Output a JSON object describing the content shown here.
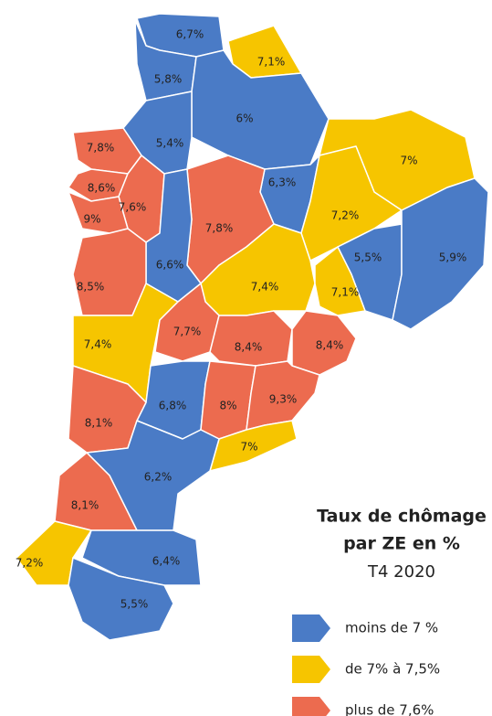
{
  "legend": {
    "title": [
      "Taux de chômage",
      "par ZE en %"
    ],
    "subtitle": "T4 2020",
    "items": [
      {
        "label": "moins de 7 %",
        "color": "#4a7bc6"
      },
      {
        "label": "de 7% à 7,5%",
        "color": "#f6c500"
      },
      {
        "label": "plus de 7,6%",
        "color": "#ec6b4f"
      }
    ]
  },
  "zones": [
    {
      "label": "6,7%",
      "class": 0
    },
    {
      "label": "7,1%",
      "class": 1
    },
    {
      "label": "5,8%",
      "class": 0
    },
    {
      "label": "6%",
      "class": 0
    },
    {
      "label": "5,4%",
      "class": 0
    },
    {
      "label": "7,8%",
      "class": 2
    },
    {
      "label": "7%",
      "class": 1
    },
    {
      "label": "8,6%",
      "class": 2
    },
    {
      "label": "6,3%",
      "class": 0
    },
    {
      "label": "7,6%",
      "class": 2
    },
    {
      "label": "9%",
      "class": 2
    },
    {
      "label": "7,2%",
      "class": 1
    },
    {
      "label": "7,8%",
      "class": 2
    },
    {
      "label": "5,5%",
      "class": 0
    },
    {
      "label": "5,9%",
      "class": 0
    },
    {
      "label": "6,6%",
      "class": 0
    },
    {
      "label": "8,5%",
      "class": 2
    },
    {
      "label": "7,4%",
      "class": 1
    },
    {
      "label": "7,1%",
      "class": 1
    },
    {
      "label": "7,4%",
      "class": 1
    },
    {
      "label": "7,7%",
      "class": 2
    },
    {
      "label": "8,4%",
      "class": 2
    },
    {
      "label": "8,4%",
      "class": 2
    },
    {
      "label": "6,8%",
      "class": 0
    },
    {
      "label": "8%",
      "class": 2
    },
    {
      "label": "9,3%",
      "class": 2
    },
    {
      "label": "8,1%",
      "class": 2
    },
    {
      "label": "7%",
      "class": 1
    },
    {
      "label": "6,2%",
      "class": 0
    },
    {
      "label": "8,1%",
      "class": 2
    },
    {
      "label": "7,2%",
      "class": 1
    },
    {
      "label": "6,4%",
      "class": 0
    },
    {
      "label": "5,5%",
      "class": 0
    }
  ]
}
